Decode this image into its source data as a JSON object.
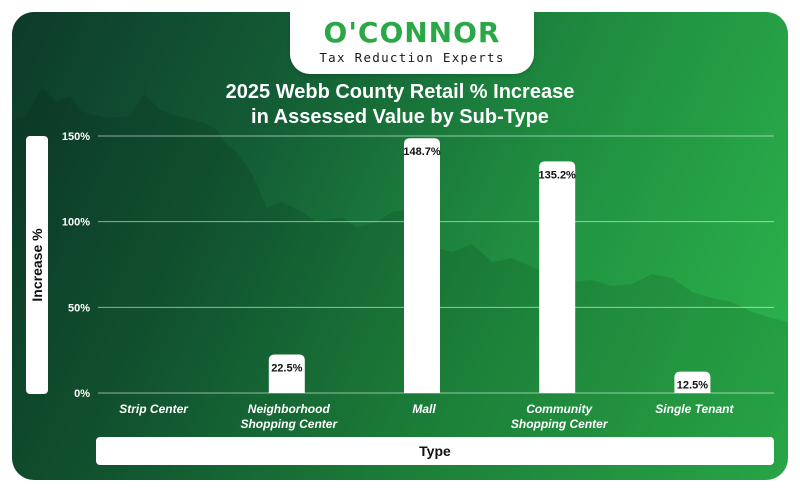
{
  "brand": {
    "name": "O'CONNOR",
    "tagline": "Tax Reduction Experts"
  },
  "colors": {
    "accent": "#2aa845",
    "bar": "#ffffff",
    "text": "#ffffff"
  },
  "chart_data": {
    "type": "bar",
    "title_line1": "2025 Webb County Retail % Increase",
    "title_line2": "in Assessed Value by Sub-Type",
    "xlabel": "Type",
    "ylabel": "Increase %",
    "ylim": [
      0,
      150
    ],
    "yticks": [
      0,
      50,
      100,
      150
    ],
    "ytick_labels": [
      "0%",
      "50%",
      "100%",
      "150%"
    ],
    "grid": true,
    "categories": [
      [
        "Strip Center"
      ],
      [
        "Neighborhood",
        "Shopping Center"
      ],
      [
        "Mall"
      ],
      [
        "Community",
        "Shopping Center"
      ],
      [
        "Single Tenant"
      ]
    ],
    "values": [
      0,
      22.5,
      148.7,
      135.2,
      12.5
    ],
    "value_labels": [
      "",
      "22.5%",
      "148.7%",
      "135.2%",
      "12.5%"
    ]
  }
}
